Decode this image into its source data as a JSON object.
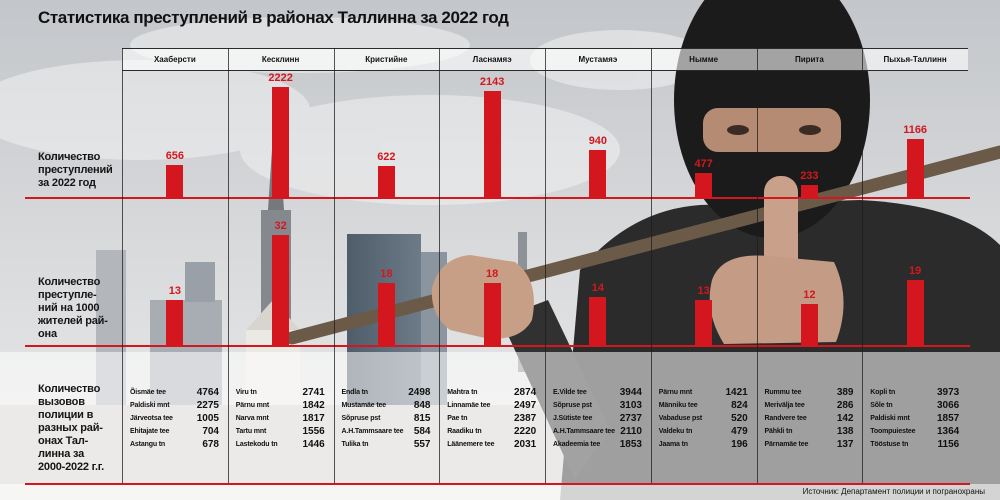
{
  "title": "Статистика преступлений в районах Таллинна за 2022 год",
  "source": "Источник: Департамент полиции и погранохраны",
  "colors": {
    "accent": "#d4171e"
  },
  "chart_data": [
    {
      "type": "bar",
      "categories": [
        "Хааберсти",
        "Кесклинн",
        "Кристийне",
        "Ласнамяэ",
        "Мустамяэ",
        "Нымме",
        "Пирита",
        "Пыхья-Таллинн"
      ],
      "series": [
        {
          "name": "Количество\nпреступлений\nза 2022 год",
          "values": [
            656,
            2222,
            622,
            2143,
            940,
            477,
            233,
            1166
          ]
        },
        {
          "name": "Количество\nпреступле-\nний на 1000\nжителей рай-\nона",
          "values": [
            13,
            32,
            18,
            18,
            14,
            13,
            12,
            19
          ]
        }
      ],
      "data_labels": true,
      "grid": false
    },
    {
      "type": "table",
      "title": "Количество\nвызовов\nполиции в\nразных рай-\nонах Тал-\nлинна за\n2000-2022 г.г.",
      "columns": [
        [
          {
            "street": "Õismäe tee",
            "calls": 4764
          },
          {
            "street": "Paldiski mnt",
            "calls": 2275
          },
          {
            "street": "Järveotsa tee",
            "calls": 1005
          },
          {
            "street": "Ehitajate tee",
            "calls": 704
          },
          {
            "street": "Astangu tn",
            "calls": 678
          }
        ],
        [
          {
            "street": "Viru tn",
            "calls": 2741
          },
          {
            "street": "Pärnu mnt",
            "calls": 1842
          },
          {
            "street": "Narva mnt",
            "calls": 1817
          },
          {
            "street": "Tartu mnt",
            "calls": 1556
          },
          {
            "street": "Lastekodu tn",
            "calls": 1446
          }
        ],
        [
          {
            "street": "Endla tn",
            "calls": 2498
          },
          {
            "street": "Mustamäe tee",
            "calls": 848
          },
          {
            "street": "Sõpruse pst",
            "calls": 815
          },
          {
            "street": "A.H.Tammsaare tee",
            "calls": 584
          },
          {
            "street": "Tulika tn",
            "calls": 557
          }
        ],
        [
          {
            "street": "Mahtra tn",
            "calls": 2874
          },
          {
            "street": "Linnamäe tee",
            "calls": 2497
          },
          {
            "street": "Pae tn",
            "calls": 2387
          },
          {
            "street": "Raadiku tn",
            "calls": 2220
          },
          {
            "street": "Läänemere tee",
            "calls": 2031
          }
        ],
        [
          {
            "street": "E.Vilde tee",
            "calls": 3944
          },
          {
            "street": "Sõpruse pst",
            "calls": 3103
          },
          {
            "street": "J.Sütiste tee",
            "calls": 2737
          },
          {
            "street": "A.H.Tammsaare tee",
            "calls": 2110
          },
          {
            "street": "Akadeemia tee",
            "calls": 1853
          }
        ],
        [
          {
            "street": "Pärnu mnt",
            "calls": 1421
          },
          {
            "street": "Männiku tee",
            "calls": 824
          },
          {
            "street": "Vabaduse pst",
            "calls": 520
          },
          {
            "street": "Valdeku tn",
            "calls": 479
          },
          {
            "street": "Jaama tn",
            "calls": 196
          }
        ],
        [
          {
            "street": "Rummu tee",
            "calls": 389
          },
          {
            "street": "Merivälja tee",
            "calls": 286
          },
          {
            "street": "Randvere tee",
            "calls": 142
          },
          {
            "street": "Pähkli tn",
            "calls": 138
          },
          {
            "street": "Pärnamäe tee",
            "calls": 137
          }
        ],
        [
          {
            "street": "Kopli tn",
            "calls": 3973
          },
          {
            "street": "Sõle tn",
            "calls": 3066
          },
          {
            "street": "Paldiski mnt",
            "calls": 1857
          },
          {
            "street": "Toompuiestee",
            "calls": 1364
          },
          {
            "street": "Tööstuse tn",
            "calls": 1156
          }
        ]
      ]
    }
  ]
}
